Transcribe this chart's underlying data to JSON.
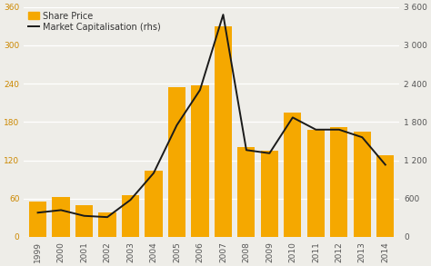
{
  "years": [
    1999,
    2000,
    2001,
    2002,
    2003,
    2004,
    2005,
    2006,
    2007,
    2008,
    2009,
    2010,
    2011,
    2012,
    2013,
    2014
  ],
  "share_price": [
    55,
    62,
    50,
    38,
    65,
    103,
    235,
    237,
    330,
    140,
    135,
    195,
    168,
    172,
    165,
    128
  ],
  "market_cap": [
    380,
    420,
    330,
    310,
    580,
    1000,
    1750,
    2300,
    3480,
    1360,
    1310,
    1870,
    1680,
    1680,
    1560,
    1130
  ],
  "bar_color": "#F5A800",
  "line_color": "#1a1a1a",
  "background_color": "#eeede8",
  "grid_color": "#ffffff",
  "left_ylim": [
    0,
    360
  ],
  "right_ylim": [
    0,
    3600
  ],
  "left_yticks": [
    0,
    60,
    120,
    180,
    240,
    300,
    360
  ],
  "right_yticks": [
    0,
    600,
    1200,
    1800,
    2400,
    3000,
    3600
  ],
  "right_yticklabels": [
    "0",
    "600",
    "1 200",
    "1 800",
    "2 400",
    "3 000",
    "3 600"
  ],
  "left_tick_color": "#cc8800",
  "right_tick_color": "#555555",
  "x_tick_color": "#555555",
  "legend_share_price": "Share Price",
  "legend_market_cap": "Market Capitalisation",
  "legend_market_cap_rhs": "(rhs)",
  "tick_fontsize": 6.5,
  "legend_fontsize": 7.0
}
